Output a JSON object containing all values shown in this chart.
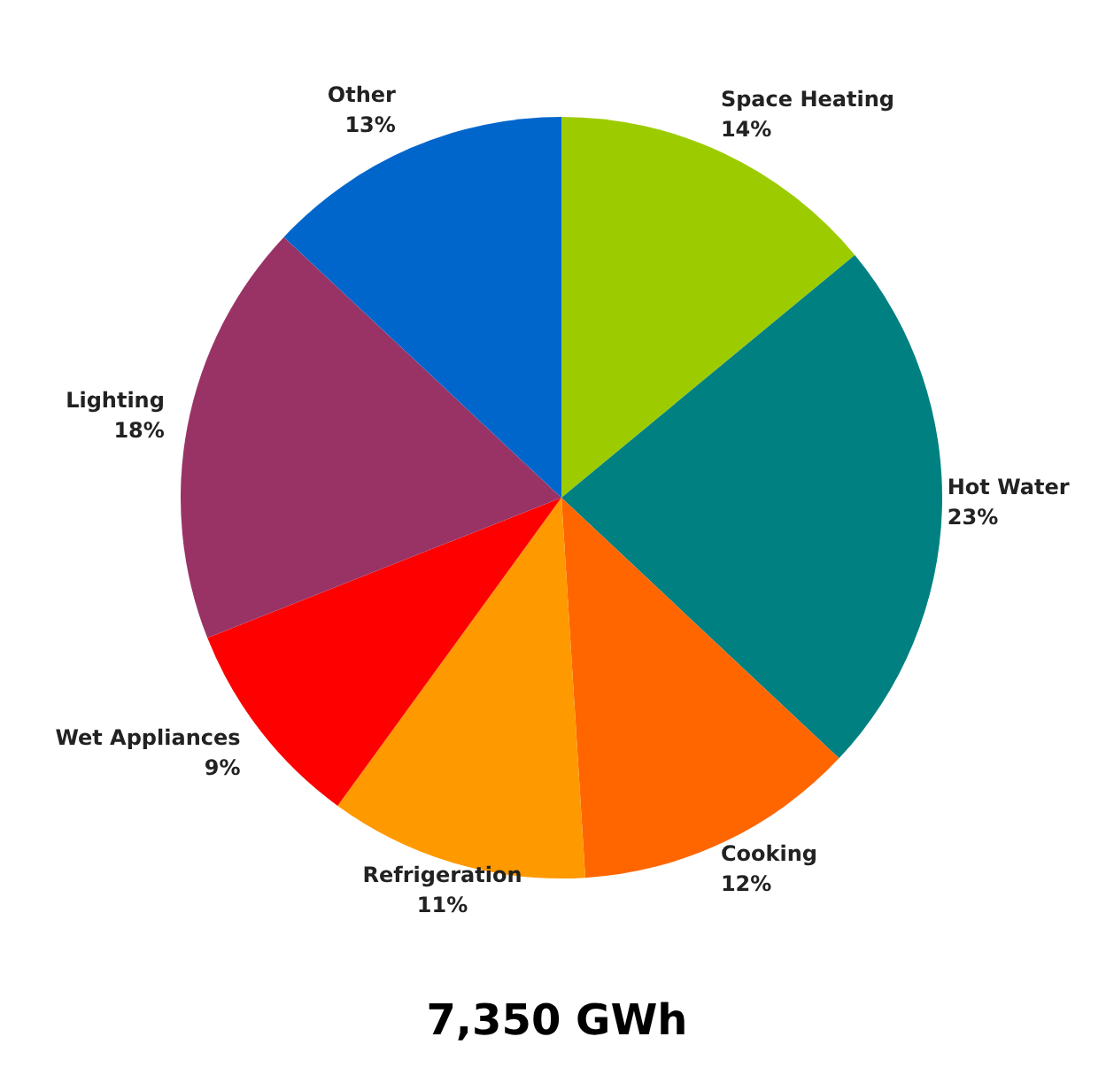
{
  "chart_data": {
    "type": "pie",
    "categories": [
      "Space Heating",
      "Hot Water",
      "Cooking",
      "Refrigeration",
      "Wet Appliances",
      "Lighting",
      "Other"
    ],
    "values": [
      14,
      23,
      12,
      11,
      9,
      18,
      13
    ],
    "value_labels": [
      "14%",
      "23%",
      "12%",
      "11%",
      "9%",
      "18%",
      "13%"
    ],
    "colors": [
      "#9ccc00",
      "#008080",
      "#ff6600",
      "#ff9900",
      "#ff0000",
      "#993366",
      "#0066cc"
    ],
    "legend": false,
    "annotations": [
      "7,350 GWh"
    ]
  }
}
